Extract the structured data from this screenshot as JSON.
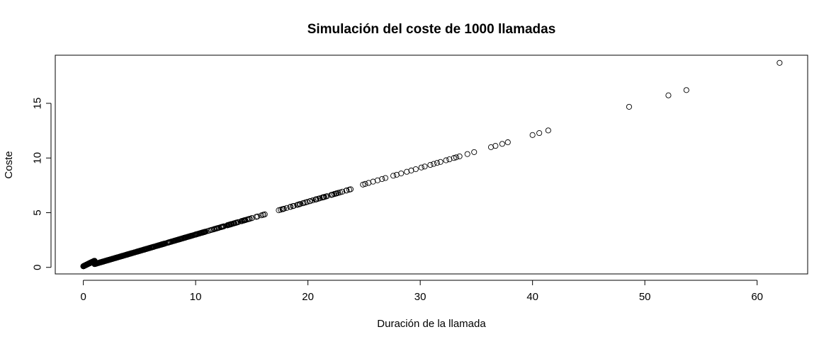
{
  "chart_data": {
    "type": "scatter",
    "title": "Simulación del coste de 1000 llamadas",
    "xlabel": "Duración de la llamada",
    "ylabel": "Coste",
    "xlim": [
      -2.5,
      64.5
    ],
    "ylim": [
      -0.6,
      19.4
    ],
    "xticks": [
      0,
      10,
      20,
      30,
      40,
      50,
      60
    ],
    "yticks": [
      0,
      5,
      10,
      15
    ],
    "grid": false,
    "legend": "none",
    "marker": "open-circle",
    "color": "#000000",
    "note_generated": "rule: cost = 0.3*x (+0.1 surcharge below x=1); points dense near 0, sparse tail",
    "outliers": {
      "x": [
        36.3,
        36.7,
        37.3,
        37.8,
        40.0,
        40.6,
        41.4,
        48.6,
        52.1,
        53.7,
        62.0
      ],
      "y": [
        10.99,
        11.11,
        11.29,
        11.44,
        12.1,
        12.28,
        12.52,
        14.68,
        15.73,
        16.21,
        18.7
      ]
    },
    "mid_points": {
      "x": [
        24.9,
        25.1,
        25.4,
        25.8,
        26.2,
        26.6,
        26.9,
        27.6,
        27.9,
        28.3,
        28.8,
        29.2,
        29.6,
        30.1,
        30.4,
        30.9,
        31.2,
        31.5,
        31.8,
        32.3,
        32.6,
        33.0,
        33.2,
        33.5,
        34.2,
        34.8
      ],
      "y": [
        7.57,
        7.63,
        7.72,
        7.84,
        7.96,
        8.08,
        8.17,
        8.38,
        8.47,
        8.59,
        8.74,
        8.86,
        8.98,
        9.13,
        9.22,
        9.37,
        9.46,
        9.55,
        9.64,
        9.79,
        9.88,
        10.0,
        10.06,
        10.15,
        10.36,
        10.54
      ]
    }
  }
}
